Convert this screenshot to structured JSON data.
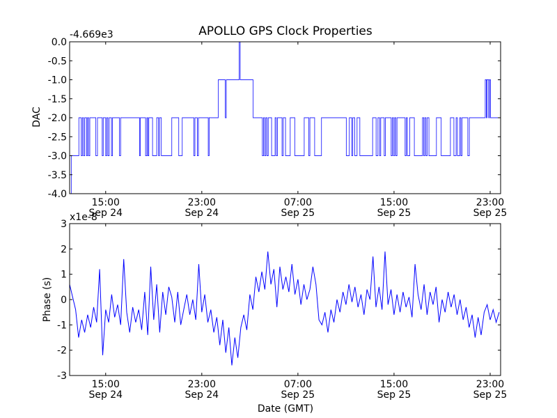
{
  "chart_data": [
    {
      "type": "line",
      "title": "APOLLO GPS Clock Properties",
      "xlabel": "",
      "ylabel": "DAC",
      "y_offset_label": "-4.669e3",
      "ylim": [
        -4.0,
        0.0
      ],
      "yticks": [
        -4.0,
        -3.5,
        -3.0,
        -2.5,
        -2.0,
        -1.5,
        -1.0,
        -0.5,
        0.0
      ],
      "ytick_labels": [
        "-4.0",
        "-3.5",
        "-3.0",
        "-2.5",
        "-2.0",
        "-1.5",
        "-1.0",
        "-0.5",
        "0.0"
      ],
      "xlim_hours_from_sep24_0000": [
        12.0,
        47.87
      ],
      "xticks_hours": [
        15,
        23,
        31,
        39,
        47
      ],
      "xtick_labels": [
        [
          "15:00",
          "Sep 24"
        ],
        [
          "23:00",
          "Sep 24"
        ],
        [
          "07:00",
          "Sep 25"
        ],
        [
          "15:00",
          "Sep 25"
        ],
        [
          "23:00",
          "Sep 25"
        ]
      ],
      "series": [
        {
          "name": "DAC",
          "color": "#0000ff",
          "step_points": [
            [
              12.0,
              -4
            ],
            [
              12.14,
              -3
            ],
            [
              12.77,
              -2
            ],
            [
              12.97,
              -3
            ],
            [
              13.06,
              -2
            ],
            [
              13.16,
              -3
            ],
            [
              13.26,
              -2
            ],
            [
              13.41,
              -3
            ],
            [
              13.49,
              -2
            ],
            [
              13.58,
              -3
            ],
            [
              13.68,
              -2
            ],
            [
              14.18,
              -3
            ],
            [
              14.32,
              -2
            ],
            [
              14.71,
              -3
            ],
            [
              14.8,
              -2
            ],
            [
              15.0,
              -3
            ],
            [
              15.09,
              -2
            ],
            [
              15.19,
              -3
            ],
            [
              15.29,
              -2
            ],
            [
              15.48,
              -3
            ],
            [
              15.57,
              -2
            ],
            [
              16.15,
              -3
            ],
            [
              16.25,
              -2
            ],
            [
              17.82,
              -3
            ],
            [
              17.89,
              -2
            ],
            [
              18.32,
              -3
            ],
            [
              18.43,
              -2
            ],
            [
              18.51,
              -3
            ],
            [
              18.59,
              -2
            ],
            [
              18.9,
              -3
            ],
            [
              19.25,
              -2
            ],
            [
              19.4,
              -3
            ],
            [
              19.48,
              -2
            ],
            [
              19.63,
              -3
            ],
            [
              20.5,
              -2
            ],
            [
              21.08,
              -3
            ],
            [
              21.37,
              -2
            ],
            [
              22.34,
              -3
            ],
            [
              22.43,
              -2
            ],
            [
              22.63,
              -3
            ],
            [
              22.72,
              -2
            ],
            [
              23.54,
              -3
            ],
            [
              23.61,
              -2
            ],
            [
              24.37,
              -1
            ],
            [
              24.95,
              -2
            ],
            [
              25.04,
              -1
            ],
            [
              26.11,
              0
            ],
            [
              26.2,
              -1
            ],
            [
              27.27,
              -2
            ],
            [
              28.04,
              -3
            ],
            [
              28.14,
              -2
            ],
            [
              28.23,
              -3
            ],
            [
              28.33,
              -2
            ],
            [
              28.43,
              -3
            ],
            [
              28.53,
              -2
            ],
            [
              28.81,
              -3
            ],
            [
              29.1,
              -2
            ],
            [
              29.2,
              -3
            ],
            [
              29.3,
              -2
            ],
            [
              29.68,
              -3
            ],
            [
              29.78,
              -2
            ],
            [
              29.97,
              -3
            ],
            [
              30.36,
              -2
            ],
            [
              30.74,
              -3
            ],
            [
              31.52,
              -2
            ],
            [
              31.9,
              -3
            ],
            [
              32.0,
              -2
            ],
            [
              32.39,
              -3
            ],
            [
              32.96,
              -2
            ],
            [
              35.03,
              -3
            ],
            [
              35.28,
              -2
            ],
            [
              35.48,
              -3
            ],
            [
              35.57,
              -2
            ],
            [
              35.73,
              -3
            ],
            [
              35.92,
              -2
            ],
            [
              36.15,
              -3
            ],
            [
              37.22,
              -2
            ],
            [
              37.51,
              -3
            ],
            [
              37.66,
              -2
            ],
            [
              37.8,
              -3
            ],
            [
              37.89,
              -2
            ],
            [
              38.18,
              -3
            ],
            [
              38.28,
              -2
            ],
            [
              38.76,
              -3
            ],
            [
              38.86,
              -2
            ],
            [
              38.96,
              -3
            ],
            [
              39.05,
              -2
            ],
            [
              39.15,
              -3
            ],
            [
              39.25,
              -2
            ],
            [
              39.92,
              -3
            ],
            [
              40.02,
              -2
            ],
            [
              40.11,
              -3
            ],
            [
              40.31,
              -2
            ],
            [
              40.69,
              -3
            ],
            [
              41.37,
              -2
            ],
            [
              41.47,
              -3
            ],
            [
              41.56,
              -2
            ],
            [
              41.66,
              -3
            ],
            [
              41.76,
              -2
            ],
            [
              41.91,
              -3
            ],
            [
              42.53,
              -2
            ],
            [
              42.92,
              -3
            ],
            [
              43.69,
              -2
            ],
            [
              43.98,
              -3
            ],
            [
              44.17,
              -2
            ],
            [
              44.27,
              -3
            ],
            [
              44.47,
              -2
            ],
            [
              44.56,
              -3
            ],
            [
              44.66,
              -2
            ],
            [
              45.14,
              -3
            ],
            [
              45.27,
              -2
            ],
            [
              46.59,
              -1
            ],
            [
              46.69,
              -2
            ],
            [
              46.74,
              -1
            ],
            [
              46.88,
              -2
            ],
            [
              46.94,
              -1
            ],
            [
              47.03,
              -2
            ],
            [
              47.87,
              -2
            ]
          ]
        }
      ]
    },
    {
      "type": "line",
      "title": "",
      "xlabel": "Date (GMT)",
      "ylabel": "Phase (s)",
      "y_offset_label": "x1e-8",
      "ylim": [
        -3,
        3
      ],
      "yticks": [
        -3,
        -2,
        -1,
        0,
        1,
        2,
        3
      ],
      "ytick_labels": [
        "-3",
        "-2",
        "-1",
        "0",
        "1",
        "2",
        "3"
      ],
      "xlim_hours_from_sep24_0000": [
        12.0,
        47.87
      ],
      "xticks_hours": [
        15,
        23,
        31,
        39,
        47
      ],
      "xtick_labels": [
        [
          "15:00",
          "Sep 24"
        ],
        [
          "23:00",
          "Sep 24"
        ],
        [
          "07:00",
          "Sep 25"
        ],
        [
          "15:00",
          "Sep 25"
        ],
        [
          "23:00",
          "Sep 25"
        ]
      ],
      "series": [
        {
          "name": "Phase",
          "color": "#0000ff",
          "x_start_hour": 12.0,
          "x_step_hours": 0.25,
          "values": [
            0.6,
            0.1,
            -0.4,
            -1.5,
            -0.8,
            -1.3,
            -0.6,
            -1.1,
            -0.3,
            -0.9,
            1.2,
            -2.2,
            -0.4,
            -0.9,
            0.2,
            -0.7,
            -0.2,
            -1.0,
            1.6,
            -0.5,
            -1.3,
            -0.3,
            -0.9,
            -0.4,
            -1.2,
            0.3,
            -1.4,
            1.3,
            -0.8,
            0.6,
            -1.3,
            0.3,
            -0.6,
            0.5,
            0.1,
            -0.9,
            0.3,
            -1.0,
            -0.4,
            0.2,
            -0.6,
            0.0,
            -0.8,
            1.4,
            -0.5,
            0.2,
            -0.9,
            -0.4,
            -1.3,
            -0.7,
            -1.8,
            -0.8,
            -2.1,
            -1.1,
            -2.6,
            -1.5,
            -2.3,
            -1.1,
            -0.6,
            -1.2,
            0.2,
            -0.4,
            0.9,
            0.3,
            1.1,
            0.4,
            1.9,
            0.6,
            1.2,
            -0.3,
            1.3,
            0.4,
            0.9,
            0.3,
            1.4,
            0.2,
            0.8,
            -0.2,
            0.6,
            0.0,
            0.4,
            1.3,
            0.6,
            -0.8,
            -1.0,
            -0.5,
            -1.3,
            -0.4,
            -0.9,
            0.0,
            -0.5,
            0.3,
            -0.2,
            0.6,
            -0.1,
            0.5,
            -0.3,
            0.2,
            -0.6,
            0.4,
            0.0,
            1.7,
            -0.3,
            0.5,
            -0.4,
            1.9,
            -0.2,
            0.4,
            -0.6,
            0.2,
            -0.5,
            0.3,
            -0.3,
            0.1,
            -0.7,
            1.4,
            0.2,
            -0.4,
            0.6,
            -0.6,
            0.3,
            -0.2,
            0.5,
            -0.9,
            0.0,
            -0.5,
            0.3,
            -0.3,
            0.2,
            -0.6,
            0.0,
            -0.8,
            -0.3,
            -1.1,
            -0.6,
            -1.5,
            -0.7,
            -1.4,
            -0.5,
            -0.2,
            -0.8,
            -0.4,
            -0.9,
            -0.5
          ]
        }
      ]
    }
  ]
}
